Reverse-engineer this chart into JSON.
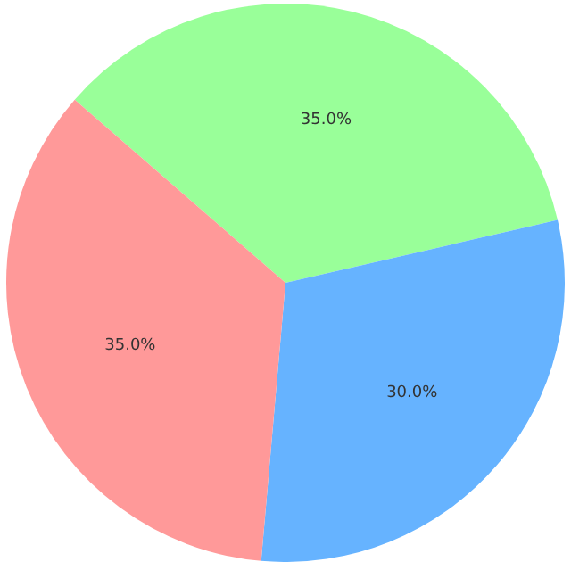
{
  "chart_data": {
    "type": "pie",
    "categories": [
      null,
      null,
      null
    ],
    "values": [
      35,
      30,
      35
    ],
    "colors": [
      "#99ff99",
      "#66b3ff",
      "#ff9999"
    ],
    "value_labels": [
      "35.0%",
      "30.0%",
      "35.0%"
    ],
    "legend": false
  }
}
